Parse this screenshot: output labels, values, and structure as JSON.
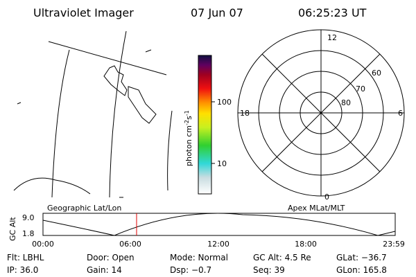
{
  "header": {
    "instrument": "Ultraviolet Imager",
    "date": "07 Jun 07",
    "time": "06:25:23 UT"
  },
  "colorbar": {
    "unit": [
      "photon cm",
      "-2",
      "s",
      "-1"
    ],
    "ticks": [
      "100",
      "10"
    ]
  },
  "polar": {
    "mlt_labels": [
      "12",
      "18",
      "6",
      "0"
    ],
    "mlat_labels": [
      "60",
      "70",
      "80"
    ]
  },
  "panel_labels": {
    "left": "Geographic Lat/Lon",
    "right": "Apex MLat/MLT"
  },
  "timeline": {
    "axis_label": "GC Alt",
    "y_labels": [
      "9.0",
      "1.8"
    ],
    "time_labels": [
      "00:00",
      "06:00",
      "12:00",
      "18:00",
      "23:59"
    ]
  },
  "footer": {
    "rows": [
      [
        "Flt: LBHL",
        "Door: Open",
        "Mode: Normal",
        "GC Alt: 4.5 Re",
        "GLat: −36.7"
      ],
      [
        "IP: 36.0",
        "Gain: 14",
        "Dsp:    −0.7",
        "Seq: 39",
        "GLon: 165.8"
      ]
    ]
  }
}
